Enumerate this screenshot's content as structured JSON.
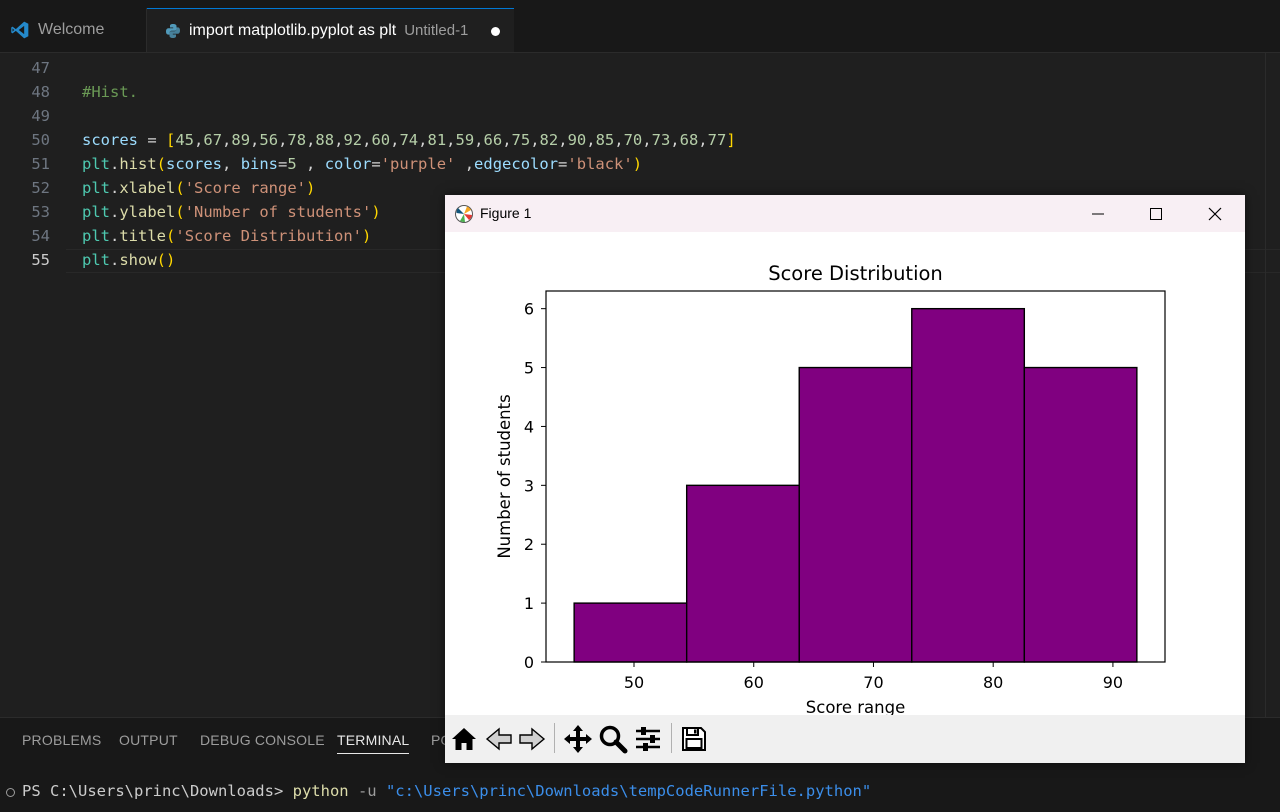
{
  "tabs": {
    "welcome": "Welcome",
    "active_title": "import matplotlib.pyplot as plt",
    "active_sub": "Untitled-1"
  },
  "editor": {
    "lines": [
      {
        "n": "47",
        "tokens": []
      },
      {
        "n": "48",
        "tokens": [
          {
            "c": "c-com",
            "t": "#Hist."
          }
        ]
      },
      {
        "n": "49",
        "tokens": []
      },
      {
        "n": "50",
        "tokens": [
          {
            "c": "c-var",
            "t": "scores"
          },
          {
            "c": "c-op",
            "t": " = "
          },
          {
            "c": "c-b1",
            "t": "["
          },
          {
            "c": "c-num",
            "t": "45"
          },
          {
            "c": "c-op",
            "t": ","
          },
          {
            "c": "c-num",
            "t": "67"
          },
          {
            "c": "c-op",
            "t": ","
          },
          {
            "c": "c-num",
            "t": "89"
          },
          {
            "c": "c-op",
            "t": ","
          },
          {
            "c": "c-num",
            "t": "56"
          },
          {
            "c": "c-op",
            "t": ","
          },
          {
            "c": "c-num",
            "t": "78"
          },
          {
            "c": "c-op",
            "t": ","
          },
          {
            "c": "c-num",
            "t": "88"
          },
          {
            "c": "c-op",
            "t": ","
          },
          {
            "c": "c-num",
            "t": "92"
          },
          {
            "c": "c-op",
            "t": ","
          },
          {
            "c": "c-num",
            "t": "60"
          },
          {
            "c": "c-op",
            "t": ","
          },
          {
            "c": "c-num",
            "t": "74"
          },
          {
            "c": "c-op",
            "t": ","
          },
          {
            "c": "c-num",
            "t": "81"
          },
          {
            "c": "c-op",
            "t": ","
          },
          {
            "c": "c-num",
            "t": "59"
          },
          {
            "c": "c-op",
            "t": ","
          },
          {
            "c": "c-num",
            "t": "66"
          },
          {
            "c": "c-op",
            "t": ","
          },
          {
            "c": "c-num",
            "t": "75"
          },
          {
            "c": "c-op",
            "t": ","
          },
          {
            "c": "c-num",
            "t": "82"
          },
          {
            "c": "c-op",
            "t": ","
          },
          {
            "c": "c-num",
            "t": "90"
          },
          {
            "c": "c-op",
            "t": ","
          },
          {
            "c": "c-num",
            "t": "85"
          },
          {
            "c": "c-op",
            "t": ","
          },
          {
            "c": "c-num",
            "t": "70"
          },
          {
            "c": "c-op",
            "t": ","
          },
          {
            "c": "c-num",
            "t": "73"
          },
          {
            "c": "c-op",
            "t": ","
          },
          {
            "c": "c-num",
            "t": "68"
          },
          {
            "c": "c-op",
            "t": ","
          },
          {
            "c": "c-num",
            "t": "77"
          },
          {
            "c": "c-b1",
            "t": "]"
          }
        ]
      },
      {
        "n": "51",
        "tokens": [
          {
            "c": "c-mod",
            "t": "plt"
          },
          {
            "c": "c-op",
            "t": "."
          },
          {
            "c": "c-fn",
            "t": "hist"
          },
          {
            "c": "c-b1",
            "t": "("
          },
          {
            "c": "c-var",
            "t": "scores"
          },
          {
            "c": "c-op",
            "t": ", "
          },
          {
            "c": "c-var",
            "t": "bins"
          },
          {
            "c": "c-op",
            "t": "="
          },
          {
            "c": "c-num",
            "t": "5"
          },
          {
            "c": "c-op",
            "t": " , "
          },
          {
            "c": "c-var",
            "t": "color"
          },
          {
            "c": "c-op",
            "t": "="
          },
          {
            "c": "c-str",
            "t": "'purple'"
          },
          {
            "c": "c-op",
            "t": " ,"
          },
          {
            "c": "c-var",
            "t": "edgecolor"
          },
          {
            "c": "c-op",
            "t": "="
          },
          {
            "c": "c-str",
            "t": "'black'"
          },
          {
            "c": "c-b1",
            "t": ")"
          }
        ]
      },
      {
        "n": "52",
        "tokens": [
          {
            "c": "c-mod",
            "t": "plt"
          },
          {
            "c": "c-op",
            "t": "."
          },
          {
            "c": "c-fn",
            "t": "xlabel"
          },
          {
            "c": "c-b1",
            "t": "("
          },
          {
            "c": "c-str",
            "t": "'Score range'"
          },
          {
            "c": "c-b1",
            "t": ")"
          }
        ]
      },
      {
        "n": "53",
        "tokens": [
          {
            "c": "c-mod",
            "t": "plt"
          },
          {
            "c": "c-op",
            "t": "."
          },
          {
            "c": "c-fn",
            "t": "ylabel"
          },
          {
            "c": "c-b1",
            "t": "("
          },
          {
            "c": "c-str",
            "t": "'Number of students'"
          },
          {
            "c": "c-b1",
            "t": ")"
          }
        ]
      },
      {
        "n": "54",
        "tokens": [
          {
            "c": "c-mod",
            "t": "plt"
          },
          {
            "c": "c-op",
            "t": "."
          },
          {
            "c": "c-fn",
            "t": "title"
          },
          {
            "c": "c-b1",
            "t": "("
          },
          {
            "c": "c-str",
            "t": "'Score Distribution'"
          },
          {
            "c": "c-b1",
            "t": ")"
          }
        ]
      },
      {
        "n": "55",
        "tokens": [
          {
            "c": "c-mod",
            "t": "plt"
          },
          {
            "c": "c-op",
            "t": "."
          },
          {
            "c": "c-fn",
            "t": "show"
          },
          {
            "c": "c-b1",
            "t": "()"
          }
        ]
      }
    ]
  },
  "panel": {
    "tabs": [
      "PROBLEMS",
      "OUTPUT",
      "DEBUG CONSOLE",
      "TERMINAL",
      "PO"
    ],
    "active_tab": "TERMINAL",
    "terminal": {
      "prompt": "PS C:\\Users\\princ\\Downloads> ",
      "cmd": "python",
      "flag": " -u ",
      "path": "\"c:\\Users\\princ\\Downloads\\tempCodeRunnerFile.python\""
    }
  },
  "figure": {
    "window_title": "Figure 1",
    "toolbar_icons": [
      "home-icon",
      "back-icon",
      "forward-icon",
      "pan-icon",
      "zoom-icon",
      "configure-icon",
      "save-icon"
    ]
  },
  "chart_data": {
    "type": "bar",
    "title": "Score Distribution",
    "xlabel": "Score range",
    "ylabel": "Number of students",
    "bin_edges": [
      45,
      54.4,
      63.8,
      73.2,
      82.6,
      92
    ],
    "values": [
      1,
      3,
      5,
      6,
      5
    ],
    "xlim": [
      42.65,
      94.35
    ],
    "ylim": [
      0,
      6.3
    ],
    "xticks": [
      50,
      60,
      70,
      80,
      90
    ],
    "yticks": [
      0,
      1,
      2,
      3,
      4,
      5,
      6
    ],
    "bar_color": "#800080",
    "edge_color": "#000000",
    "grid": false
  }
}
